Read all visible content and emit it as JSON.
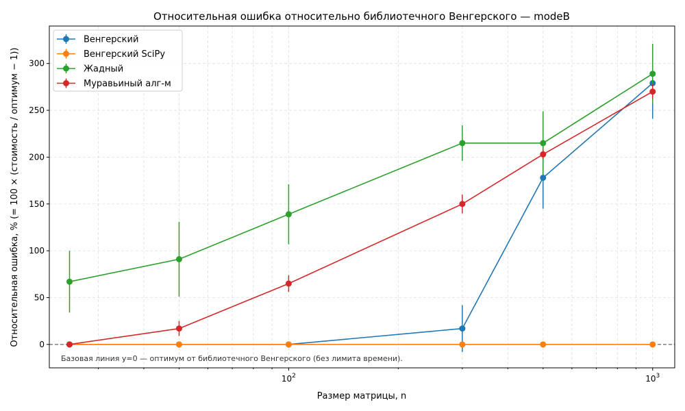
{
  "chart_data": {
    "type": "line",
    "title": "Относительная ошибка относительно библиотечного Венгерского — modeB",
    "xlabel": "Размер матрицы, n",
    "ylabel": "Относительная ошибка, %  (= 100 × (стоимость / оптимум − 1))",
    "xscale": "log",
    "xlim": [
      22,
      1150
    ],
    "ylim": [
      -25,
      340
    ],
    "x_ticks": [
      {
        "value": 100,
        "base": "10",
        "exp": "2"
      },
      {
        "value": 1000,
        "base": "10",
        "exp": "3"
      }
    ],
    "y_ticks": [
      0,
      50,
      100,
      150,
      200,
      250,
      300
    ],
    "grid": true,
    "legend_position": "top-left",
    "baseline": 0,
    "annotation": "Базовая линия y=0 — оптимум от библиотечного Венгерского (без лимита времени).",
    "x": [
      25,
      50,
      100,
      300,
      500,
      1000
    ],
    "series": [
      {
        "name": "Венгерский",
        "color": "#1f77b4",
        "values": [
          0,
          0,
          0,
          17,
          178,
          279
        ],
        "errors": [
          0,
          0,
          0,
          25,
          33,
          38
        ]
      },
      {
        "name": "Венгерский SciPy",
        "color": "#ff7f0e",
        "values": [
          0,
          0,
          0,
          0,
          0,
          0
        ],
        "errors": [
          0,
          0,
          0,
          0,
          0,
          0
        ]
      },
      {
        "name": "Жадный",
        "color": "#2ca02c",
        "values": [
          67,
          91,
          139,
          215,
          215,
          289
        ],
        "errors": [
          33,
          40,
          32,
          19,
          34,
          32
        ]
      },
      {
        "name": "Муравьиный алг-м",
        "color": "#d62728",
        "values": [
          0,
          17,
          65,
          150,
          203,
          270
        ],
        "errors": [
          0,
          8,
          9,
          10,
          5,
          8
        ]
      }
    ]
  }
}
